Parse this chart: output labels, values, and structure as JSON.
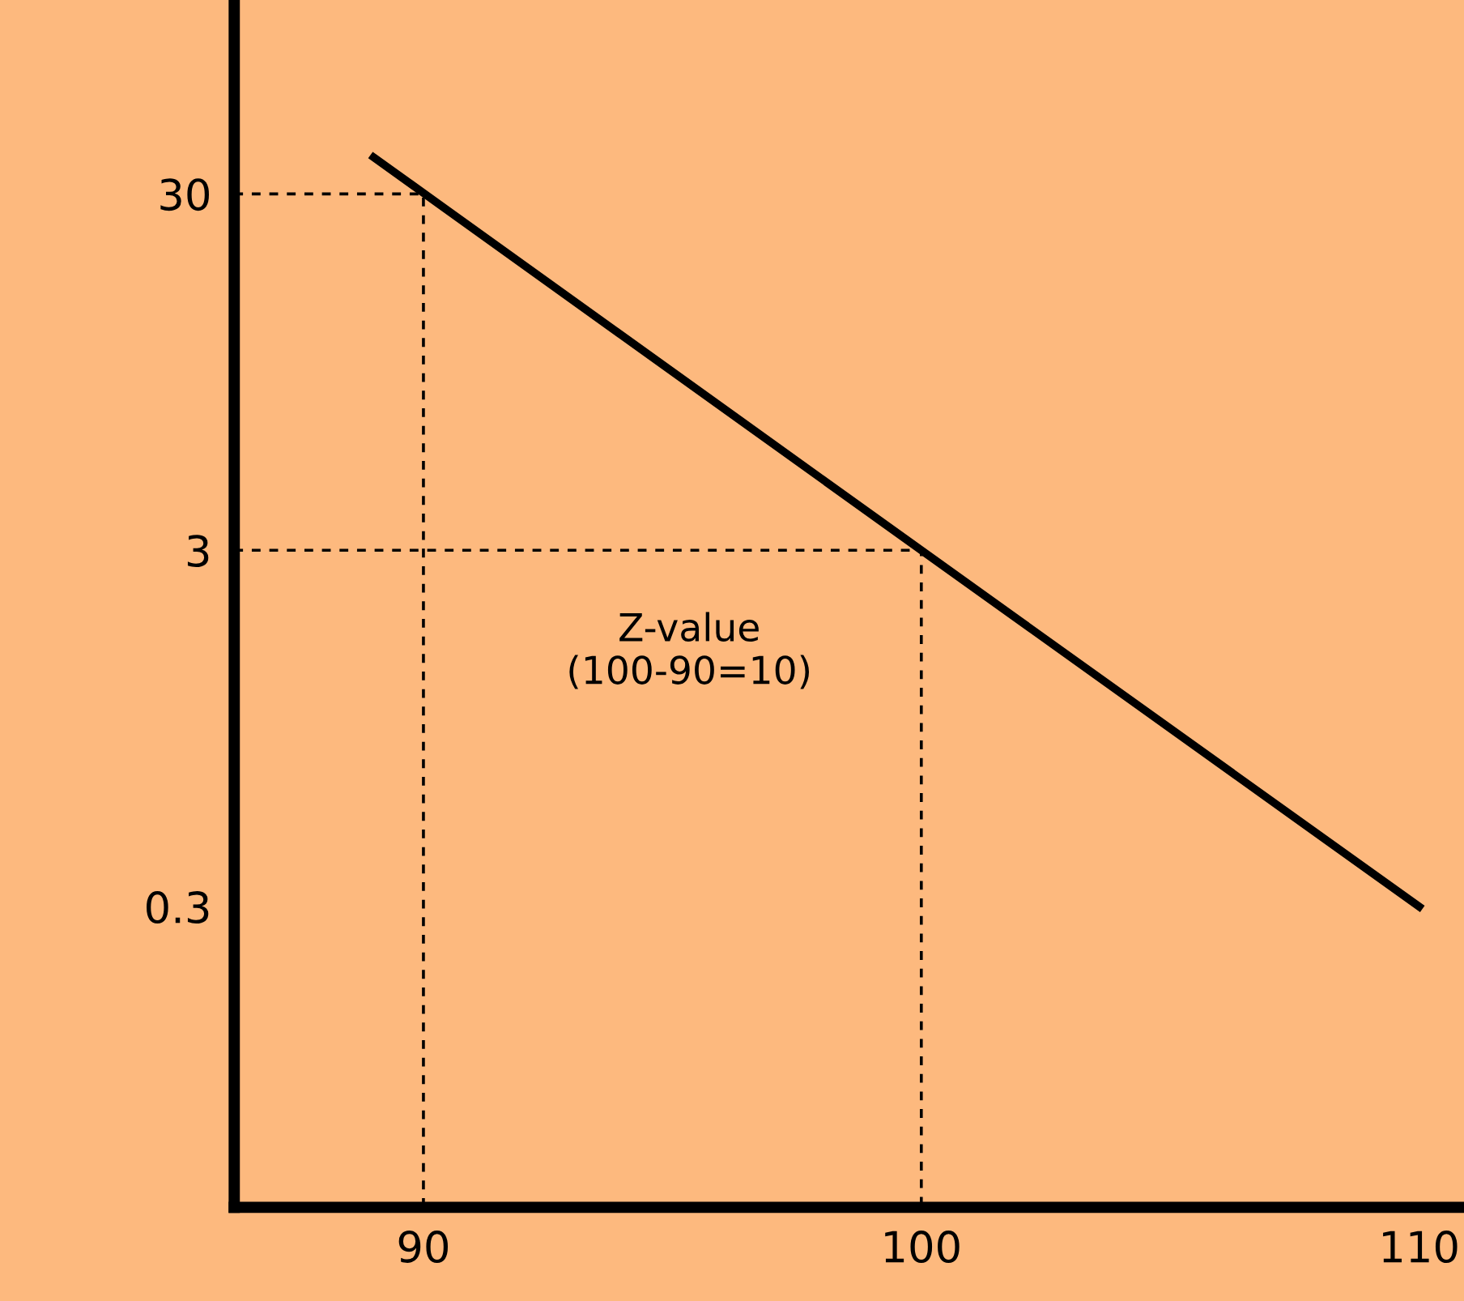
{
  "chart_data": {
    "type": "line",
    "log": "y",
    "xlim": [
      86.2,
      110.9
    ],
    "ylim": [
      0.043,
      105
    ],
    "xticks": [
      90,
      100,
      110
    ],
    "yticks": [
      0.3,
      3,
      30
    ],
    "grid": false,
    "legend": false,
    "series": [
      {
        "color": "#000000",
        "x": [
          89,
          100,
          110
        ],
        "values": [
          38,
          3,
          0.3
        ],
        "line_style": "solid"
      },
      {
        "color": "#000000",
        "x": [
          86.2,
          90,
          90
        ],
        "values": [
          30,
          30,
          0.043
        ],
        "line_style": "dashed"
      },
      {
        "color": "#000000",
        "x": [
          86.2,
          100,
          100
        ],
        "values": [
          3,
          3,
          0.043
        ],
        "line_style": "dashed"
      }
    ],
    "annotations": [
      "Z-value\n(100-90=10)"
    ]
  }
}
